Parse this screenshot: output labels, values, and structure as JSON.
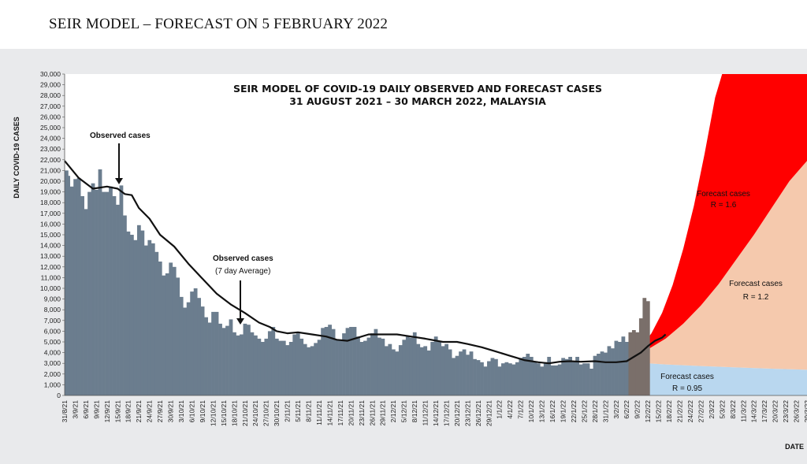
{
  "page_title": "SEIR MODEL – FORECAST ON 5 FEBRUARY 2022",
  "chart_data": {
    "type": "bar",
    "title": "SEIR MODEL OF COVID-19 DAILY OBSERVED AND FORECAST CASES",
    "subtitle": "31 AUGUST 2021 – 30 MARCH 2022, MALAYSIA",
    "ylabel": "DAILY COVID-19 CASES",
    "xlabel": "DATE",
    "ylim": [
      0,
      30000
    ],
    "y_ticks": [
      "0",
      "1,000",
      "2,000",
      "3,000",
      "4,000",
      "5,000",
      "6,000",
      "7,000",
      "8,000",
      "9,000",
      "10,000",
      "11,000",
      "12,000",
      "13,000",
      "14,000",
      "15,000",
      "16,000",
      "17,000",
      "18,000",
      "19,000",
      "20,000",
      "21,000",
      "22,000",
      "23,000",
      "24,000",
      "25,000",
      "26,000",
      "27,000",
      "28,000",
      "29,000",
      "30,000"
    ],
    "x_ticks": [
      "31/8/21",
      "3/9/21",
      "6/9/21",
      "9/9/21",
      "12/9/21",
      "15/9/21",
      "18/9/21",
      "21/9/21",
      "24/9/21",
      "27/9/21",
      "30/9/21",
      "3/10/21",
      "6/10/21",
      "9/10/21",
      "12/10/21",
      "15/10/21",
      "18/10/21",
      "21/10/21",
      "24/10/21",
      "27/10/21",
      "30/10/21",
      "2/11/21",
      "5/11/21",
      "8/11/21",
      "11/11/21",
      "14/11/21",
      "17/11/21",
      "20/11/21",
      "23/11/21",
      "26/11/21",
      "29/11/21",
      "2/12/21",
      "5/12/21",
      "8/12/21",
      "11/12/21",
      "14/12/21",
      "17/12/21",
      "20/12/21",
      "23/12/21",
      "26/12/21",
      "29/12/21",
      "1/1/22",
      "4/1/22",
      "7/1/22",
      "10/1/22",
      "13/1/22",
      "16/1/22",
      "19/1/22",
      "22/1/22",
      "25/1/22",
      "28/1/22",
      "31/1/22",
      "3/2/22",
      "6/2/22",
      "9/2/22",
      "12/2/22",
      "15/2/22",
      "18/2/22",
      "21/2/22",
      "24/2/22",
      "27/2/22",
      "2/3/22",
      "5/3/22",
      "8/3/22",
      "11/3/22",
      "14/3/22",
      "17/3/22",
      "20/3/22",
      "23/3/22",
      "26/3/22",
      "29/3/22"
    ],
    "observed_daily": [
      21000,
      20500,
      19500,
      20200,
      20300,
      18600,
      17400,
      19000,
      19800,
      19200,
      21100,
      19000,
      19000,
      19500,
      18600,
      17800,
      19600,
      16800,
      15300,
      15000,
      14500,
      15900,
      15400,
      14000,
      14500,
      14200,
      13400,
      12500,
      11200,
      11400,
      12400,
      12000,
      11000,
      9200,
      8200,
      8700,
      9700,
      10000,
      9100,
      8300,
      7300,
      6800,
      7800,
      7800,
      6700,
      6300,
      6500,
      7100,
      5900,
      5600,
      5700,
      6700,
      6600,
      5900,
      5600,
      5300,
      5000,
      5300,
      6000,
      6400,
      5300,
      5100,
      5100,
      4700,
      5000,
      5700,
      5800,
      5300,
      4800,
      4500,
      4600,
      4900,
      5200,
      6300,
      6400,
      6600,
      6200,
      5200,
      5200,
      5800,
      6300,
      6400,
      6400,
      5500,
      5000,
      5100,
      5400,
      5800,
      6200,
      5400,
      5300,
      4600,
      4800,
      4300,
      4100,
      4700,
      5200,
      5500,
      5400,
      5900,
      4800,
      4500,
      4600,
      4200,
      5000,
      5500,
      5100,
      4600,
      4800,
      4300,
      3500,
      3700,
      4100,
      4300,
      3800,
      4100,
      3400,
      3300,
      3100,
      2700,
      3200,
      3500,
      3400,
      2700,
      3000,
      3100,
      3000,
      2900,
      3100,
      3500,
      3600,
      3900,
      3600,
      3200,
      3000,
      2700,
      3100,
      3600,
      2800,
      2800,
      2900,
      3500,
      3400,
      3600,
      3200,
      3600,
      2900,
      3000,
      3000,
      2500,
      3700,
      3900,
      4100,
      4000,
      4600,
      4400,
      5100,
      5000,
      5500,
      5000,
      5900,
      6100,
      5900,
      7200,
      9100,
      8800
    ],
    "observed_7day_avg": [
      [
        0,
        21900
      ],
      [
        4,
        20300
      ],
      [
        8,
        19300
      ],
      [
        12,
        19500
      ],
      [
        15,
        19300
      ],
      [
        17,
        18800
      ],
      [
        19,
        18700
      ],
      [
        21,
        17500
      ],
      [
        24,
        16500
      ],
      [
        27,
        15000
      ],
      [
        31,
        13900
      ],
      [
        35,
        12300
      ],
      [
        39,
        10900
      ],
      [
        43,
        9500
      ],
      [
        47,
        8500
      ],
      [
        51,
        7700
      ],
      [
        55,
        6800
      ],
      [
        58,
        6400
      ],
      [
        60,
        6000
      ],
      [
        63,
        5800
      ],
      [
        66,
        5900
      ],
      [
        70,
        5700
      ],
      [
        74,
        5500
      ],
      [
        77,
        5200
      ],
      [
        80,
        5100
      ],
      [
        83,
        5400
      ],
      [
        86,
        5700
      ],
      [
        90,
        5700
      ],
      [
        94,
        5700
      ],
      [
        98,
        5500
      ],
      [
        102,
        5300
      ],
      [
        107,
        5000
      ],
      [
        111,
        5000
      ],
      [
        114,
        4800
      ],
      [
        118,
        4500
      ],
      [
        122,
        4100
      ],
      [
        126,
        3700
      ],
      [
        130,
        3300
      ],
      [
        134,
        3100
      ],
      [
        137,
        3000
      ],
      [
        140,
        3150
      ],
      [
        143,
        3200
      ],
      [
        146,
        3150
      ],
      [
        150,
        3200
      ],
      [
        153,
        3100
      ],
      [
        156,
        3100
      ],
      [
        159,
        3200
      ],
      [
        161,
        3600
      ],
      [
        163,
        4000
      ],
      [
        165,
        4600
      ],
      [
        167,
        5100
      ],
      [
        169,
        5400
      ],
      [
        170,
        5700
      ]
    ],
    "forecast_start_day": 160,
    "forecast_R095": [
      [
        160,
        3100
      ],
      [
        170,
        2900
      ],
      [
        180,
        2750
      ],
      [
        190,
        2620
      ],
      [
        200,
        2500
      ],
      [
        210,
        2400
      ]
    ],
    "forecast_R12": [
      [
        160,
        3600
      ],
      [
        165,
        4300
      ],
      [
        170,
        5300
      ],
      [
        175,
        6700
      ],
      [
        180,
        8400
      ],
      [
        185,
        10400
      ],
      [
        190,
        12700
      ],
      [
        195,
        15000
      ],
      [
        200,
        17500
      ],
      [
        205,
        20000
      ],
      [
        210,
        21900
      ]
    ],
    "forecast_R16": [
      [
        160,
        3600
      ],
      [
        163,
        4500
      ],
      [
        166,
        5800
      ],
      [
        169,
        7700
      ],
      [
        172,
        10300
      ],
      [
        175,
        13700
      ],
      [
        178,
        17700
      ],
      [
        181,
        22500
      ],
      [
        184,
        27800
      ],
      [
        186,
        30000
      ],
      [
        210,
        30000
      ]
    ],
    "axis_days": 211,
    "annotations": {
      "observed": "Observed cases",
      "observed_avg_1": "Observed cases",
      "observed_avg_2": "(7 day Average)",
      "forecast_r16_1": "Forecast cases",
      "forecast_r16_2": "R = 1.6",
      "forecast_r12_1": "Forecast cases",
      "forecast_r12_2": "R = 1.2",
      "forecast_r095_1": "Forecast cases",
      "forecast_r095_2": "R = 0.95"
    },
    "colors": {
      "observed_bar": "#6b7d8e",
      "observed_bar_light": "#9ea4a8",
      "avg_line": "#111111",
      "forecast_r16": "#ff0000",
      "forecast_r12": "#f5c9ad",
      "forecast_r095": "#b9d7ef"
    },
    "grid": false,
    "legend": "none"
  }
}
